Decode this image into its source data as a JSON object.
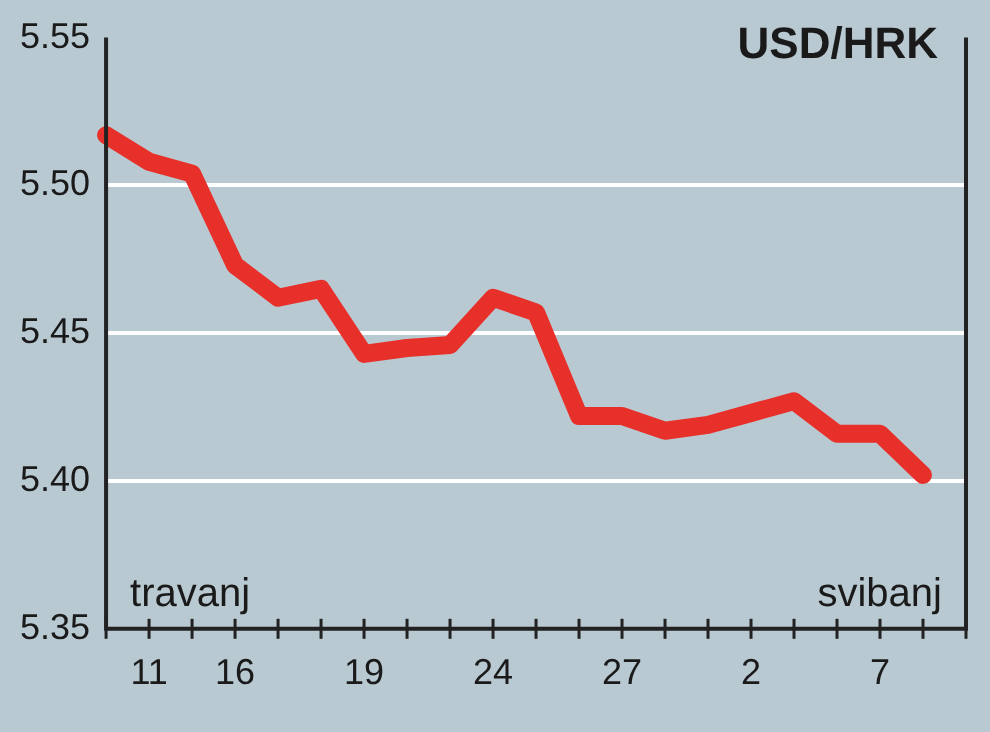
{
  "chart_data": {
    "type": "line",
    "title": "USD/HRK",
    "categories": [
      null,
      "11",
      null,
      "16",
      null,
      null,
      "19",
      null,
      null,
      "24",
      null,
      null,
      "27",
      null,
      null,
      "2",
      null,
      null,
      "7",
      null,
      null
    ],
    "series": [
      {
        "color": "#e8302a",
        "values": [
          5.517,
          5.508,
          5.504,
          5.473,
          5.462,
          5.465,
          5.443,
          5.445,
          5.446,
          5.462,
          5.457,
          5.422,
          5.422,
          5.417,
          5.419,
          5.423,
          5.427,
          5.416,
          5.416,
          5.402,
          null
        ]
      }
    ],
    "ylim": [
      5.35,
      5.55
    ],
    "yticks": [
      5.35,
      {
        "value": 5.4,
        "label": "5.40"
      },
      5.45,
      {
        "value": 5.5,
        "label": "5.50"
      },
      5.55
    ],
    "annotations": [
      "travanj",
      "svibanj"
    ],
    "grid": "y",
    "legend": false,
    "marker": "none",
    "line_style": "solid"
  }
}
